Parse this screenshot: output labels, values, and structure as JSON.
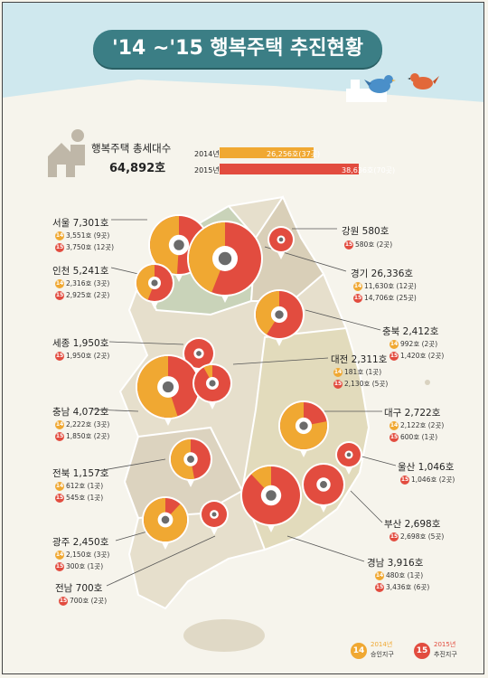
{
  "title": "'14 ~'15 행복주택 추진현황",
  "summary": {
    "label": "행복주택 총세대수",
    "total": "64,892호",
    "bars": [
      {
        "year": "2014년",
        "value": "26,256호(37곳)",
        "color": "#f0a832",
        "fraction": 0.65
      },
      {
        "year": "2015년",
        "value": "38,636호(70곳)",
        "color": "#e24c3f",
        "fraction": 0.96
      }
    ]
  },
  "regions": [
    {
      "name": "서울 7,301호",
      "lines": [
        {
          "y": "14",
          "text": "3,551호 (9곳)"
        },
        {
          "y": "15",
          "text": "3,750호 (12곳)"
        }
      ]
    },
    {
      "name": "인천 5,241호",
      "lines": [
        {
          "y": "14",
          "text": "2,316호 (3곳)"
        },
        {
          "y": "15",
          "text": "2,925호 (2곳)"
        }
      ]
    },
    {
      "name": "세종 1,950호",
      "lines": [
        {
          "y": "15",
          "text": "1,950호 (2곳)"
        }
      ]
    },
    {
      "name": "충남 4,072호",
      "lines": [
        {
          "y": "14",
          "text": "2,222호 (3곳)"
        },
        {
          "y": "15",
          "text": "1,850호 (2곳)"
        }
      ]
    },
    {
      "name": "전북 1,157호",
      "lines": [
        {
          "y": "14",
          "text": "612호 (1곳)"
        },
        {
          "y": "15",
          "text": "545호 (1곳)"
        }
      ]
    },
    {
      "name": "광주 2,450호",
      "lines": [
        {
          "y": "14",
          "text": "2,150호 (3곳)"
        },
        {
          "y": "15",
          "text": "300호 (1곳)"
        }
      ]
    },
    {
      "name": "전남 700호",
      "lines": [
        {
          "y": "15",
          "text": "700호 (2곳)"
        }
      ]
    },
    {
      "name": "강원 580호",
      "lines": [
        {
          "y": "15",
          "text": "580호 (2곳)"
        }
      ]
    },
    {
      "name": "경기 26,336호",
      "lines": [
        {
          "y": "14",
          "text": "11,630호 (12곳)"
        },
        {
          "y": "15",
          "text": "14,706호 (25곳)"
        }
      ]
    },
    {
      "name": "충북 2,412호",
      "lines": [
        {
          "y": "14",
          "text": "992호 (2곳)"
        },
        {
          "y": "15",
          "text": "1,420호 (2곳)"
        }
      ]
    },
    {
      "name": "대전 2,311호",
      "lines": [
        {
          "y": "14",
          "text": "181호 (1곳)"
        },
        {
          "y": "15",
          "text": "2,130호 (5곳)"
        }
      ]
    },
    {
      "name": "대구 2,722호",
      "lines": [
        {
          "y": "14",
          "text": "2,122호 (2곳)"
        },
        {
          "y": "15",
          "text": "600호 (1곳)"
        }
      ]
    },
    {
      "name": "울산 1,046호",
      "lines": [
        {
          "y": "15",
          "text": "1,046호 (2곳)"
        }
      ]
    },
    {
      "name": "부산 2,698호",
      "lines": [
        {
          "y": "15",
          "text": "2,698호 (5곳)"
        }
      ]
    },
    {
      "name": "경남 3,916호",
      "lines": [
        {
          "y": "14",
          "text": "480호 (1곳)"
        },
        {
          "y": "15",
          "text": "3,436호 (6곳)"
        }
      ]
    }
  ],
  "pies": [
    {
      "name": "서울",
      "share14": 0.49
    },
    {
      "name": "인천",
      "share14": 0.44
    },
    {
      "name": "경기",
      "share14": 0.44
    },
    {
      "name": "강원",
      "share14": 0
    },
    {
      "name": "충북",
      "share14": 0.41
    },
    {
      "name": "세종",
      "share14": 0
    },
    {
      "name": "충남",
      "share14": 0.55
    },
    {
      "name": "대전",
      "share14": 0.08
    },
    {
      "name": "전북",
      "share14": 0.53
    },
    {
      "name": "광주",
      "share14": 0.88
    },
    {
      "name": "전남",
      "share14": 0
    },
    {
      "name": "대구",
      "share14": 0.78
    },
    {
      "name": "울산",
      "share14": 0
    },
    {
      "name": "부산",
      "share14": 0
    },
    {
      "name": "경남",
      "share14": 0.12
    }
  ],
  "legend": [
    {
      "badge": "14",
      "year": "2014년",
      "desc": "승인지구",
      "color": "#f0a832"
    },
    {
      "badge": "15",
      "year": "2015년",
      "desc": "추진지구",
      "color": "#e24c3f"
    }
  ],
  "colors": {
    "y2014": "#f0a832",
    "y2015": "#e24c3f",
    "title_bg": "#3b7e85"
  }
}
